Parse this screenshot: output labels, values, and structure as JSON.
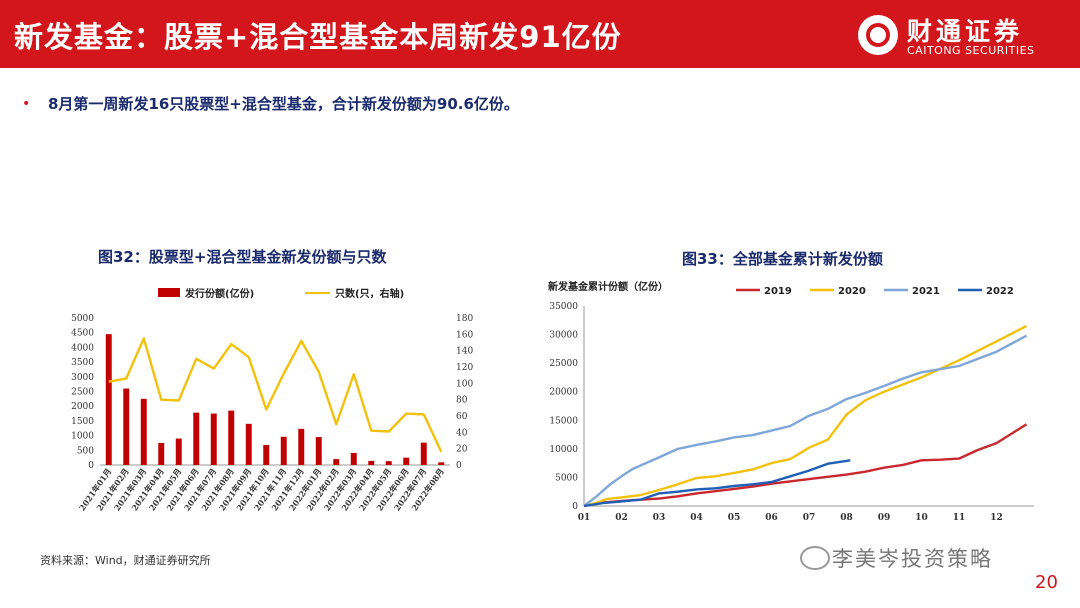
{
  "header": {
    "title": "新发基金：股票+混合型基金本周新发91亿份",
    "logo_cn": "财通证券",
    "logo_en": "CAITONG SECURITIES"
  },
  "bullet": "8月第一周新发16只股票型+混合型基金，合计新发份额为90.6亿份。",
  "source": "资料来源：Wind，财通证券研究所",
  "watermark": "李美岑投资策略",
  "page_number": "20",
  "colors": {
    "brand_red": "#d2161c",
    "bar": "#c00000",
    "line_yellow": "#f2c10e",
    "title_blue": "#1a2a6c"
  },
  "icons": [
    "logo-icon",
    "wechat-icon"
  ],
  "chart_data": [
    {
      "type": "bar",
      "title": "图32：股票型+混合型基金新发份额与只数",
      "categories": [
        "2021年01月",
        "2021年02月",
        "2021年03月",
        "2021年04月",
        "2021年05月",
        "2021年06月",
        "2021年07月",
        "2021年08月",
        "2021年09月",
        "2021年10月",
        "2021年11月",
        "2021年12月",
        "2022年01月",
        "2022年02月",
        "2022年03月",
        "2022年04月",
        "2022年05月",
        "2022年06月",
        "2022年07月",
        "2022年08月"
      ],
      "series": [
        {
          "name": "发行份额(亿份)",
          "kind": "bar",
          "axis": "left",
          "values": [
            4450,
            2600,
            2250,
            750,
            900,
            1780,
            1750,
            1850,
            1400,
            680,
            960,
            1230,
            950,
            200,
            410,
            140,
            130,
            250,
            760,
            90
          ]
        },
        {
          "name": "只数(只，右轴)",
          "kind": "line",
          "axis": "right",
          "values": [
            102,
            106,
            155,
            80,
            79,
            130,
            118,
            148,
            132,
            68,
            112,
            152,
            114,
            50,
            111,
            42,
            41,
            63,
            62,
            16
          ]
        }
      ],
      "yticks_left": [
        "0",
        "500",
        "1000",
        "1500",
        "2000",
        "2500",
        "3000",
        "3500",
        "4000",
        "4500",
        "5000"
      ],
      "yticks_right": [
        "0",
        "20",
        "40",
        "60",
        "80",
        "100",
        "120",
        "140",
        "160",
        "180"
      ],
      "ylim_left": [
        0,
        5000
      ],
      "ylim_right": [
        0,
        180
      ],
      "legend": "top"
    },
    {
      "type": "line",
      "title": "图33：全部基金累计新发份额",
      "ylabel": "新发基金累计份额（亿份）",
      "xticks": [
        "01",
        "02",
        "03",
        "04",
        "05",
        "06",
        "07",
        "08",
        "09",
        "10",
        "11",
        "12"
      ],
      "yticks": [
        "0",
        "5000",
        "10000",
        "15000",
        "20000",
        "25000",
        "30000",
        "35000"
      ],
      "ylim": [
        0,
        35000
      ],
      "legend": "top",
      "series": [
        {
          "name": "2019",
          "color": "#c9282d",
          "x": [
            1,
            1.5,
            2,
            3,
            3.5,
            4,
            5,
            5.5,
            6,
            7,
            8,
            8.5,
            9,
            9.5,
            10,
            10.5,
            11,
            11.5,
            12,
            12.8
          ],
          "y": [
            0,
            600,
            900,
            1300,
            1700,
            2200,
            3000,
            3400,
            3900,
            4700,
            5500,
            6000,
            6700,
            7200,
            8000,
            8100,
            8300,
            9800,
            11000,
            14300
          ]
        },
        {
          "name": "2020",
          "color": "#f2c10e",
          "x": [
            1,
            1.3,
            1.6,
            2,
            2.5,
            3,
            3.5,
            4,
            4.5,
            5,
            5.5,
            6,
            6.5,
            7,
            7.5,
            8,
            8.5,
            9,
            10,
            11,
            12,
            12.8
          ],
          "y": [
            0,
            500,
            1200,
            1500,
            1900,
            2800,
            3800,
            4900,
            5200,
            5800,
            6400,
            7500,
            8200,
            10200,
            11600,
            16000,
            18500,
            20000,
            22500,
            25500,
            28800,
            31500
          ]
        },
        {
          "name": "2021",
          "color": "#7ea6d8",
          "x": [
            1,
            1.3,
            1.7,
            2,
            2.3,
            3,
            3.5,
            4,
            4.5,
            5,
            5.5,
            6,
            6.5,
            7,
            7.5,
            8,
            8.5,
            9,
            9.5,
            10,
            11,
            12,
            12.8
          ],
          "y": [
            0,
            1500,
            3800,
            5200,
            6500,
            8500,
            10000,
            10700,
            11300,
            12000,
            12400,
            13200,
            14000,
            15800,
            17000,
            18700,
            19800,
            21000,
            22300,
            23400,
            24500,
            27000,
            29800
          ]
        },
        {
          "name": "2022",
          "color": "#1f5fb5",
          "x": [
            1,
            1.5,
            2,
            2.5,
            3,
            3.5,
            4,
            4.5,
            5,
            5.5,
            6,
            6.5,
            7,
            7.5,
            8,
            8.1
          ],
          "y": [
            0,
            500,
            800,
            1100,
            2200,
            2500,
            2900,
            3100,
            3500,
            3800,
            4200,
            5200,
            6200,
            7400,
            7900,
            8000
          ]
        }
      ]
    }
  ]
}
